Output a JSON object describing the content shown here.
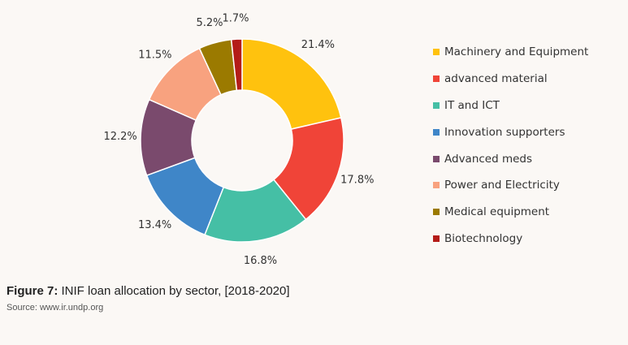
{
  "chart_data": {
    "type": "pie",
    "donut": true,
    "categories": [
      "Machinery and Equipment",
      "advanced material",
      "IT and ICT",
      "Innovation supporters",
      "Advanced meds",
      "Power and Electricity",
      "Medical equipment",
      "Biotechnology"
    ],
    "values": [
      21.4,
      17.8,
      16.8,
      13.4,
      12.2,
      11.5,
      5.2,
      1.7
    ],
    "labels": [
      "21.4%",
      "17.8%",
      "16.8%",
      "13.4%",
      "12.2%",
      "11.5%",
      "5.2%",
      "1.7%"
    ],
    "colors": [
      "#ffc20e",
      "#f04438",
      "#45bfa5",
      "#3f86c8",
      "#7a4a6d",
      "#f8a27f",
      "#9b7a00",
      "#b41c18"
    ],
    "legend_position": "right"
  },
  "caption": {
    "prefix": "Figure 7:",
    "text": " INIF loan allocation by sector, [2018-2020]"
  },
  "source": "Source: www.ir.undp.org"
}
